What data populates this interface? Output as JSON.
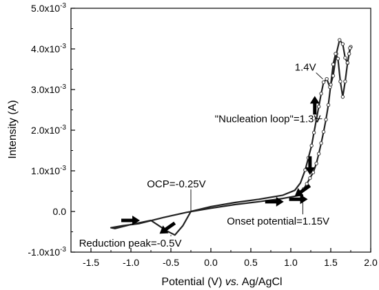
{
  "chart_data": {
    "type": "line",
    "xlabel": "Potential (V) vs. Ag/AgCl",
    "xlabel_parts": {
      "before": "Potential (V) ",
      "italic": "vs.",
      "after": " Ag/AgCl"
    },
    "ylabel": "Intensity (A)",
    "xlim": [
      -1.75,
      2.0
    ],
    "ylim": [
      -0.001,
      0.005
    ],
    "x_ticks": [
      -1.5,
      -1.0,
      -0.5,
      0.0,
      0.5,
      1.0,
      1.5,
      2.0
    ],
    "x_tick_labels": [
      "-1.5",
      "-1.0",
      "-0.5",
      "0.0",
      "0.5",
      "1.0",
      "1.5",
      "2.0"
    ],
    "y_ticks": [
      -0.001,
      0.0,
      0.001,
      0.002,
      0.003,
      0.004,
      0.005
    ],
    "y_tick_labels": [
      {
        "mantissa": "-1.0x10",
        "exp": "-3"
      },
      {
        "mantissa": "0.0",
        "exp": ""
      },
      {
        "mantissa": "1.0x10",
        "exp": "-3"
      },
      {
        "mantissa": "2.0x10",
        "exp": "-3"
      },
      {
        "mantissa": "3.0x10",
        "exp": "-3"
      },
      {
        "mantissa": "4.0x10",
        "exp": "-3"
      },
      {
        "mantissa": "5.0x10",
        "exp": "-3"
      }
    ],
    "grid": false,
    "series": [
      {
        "values_note": "",
        "x": [
          -0.25,
          0.0,
          0.3,
          0.6,
          0.9,
          1.05,
          1.12,
          1.18,
          1.22,
          1.26,
          1.29,
          1.32,
          1.35,
          1.38,
          1.41,
          1.45,
          1.49,
          1.53,
          1.57,
          1.61,
          1.65,
          1.68,
          1.71,
          1.73,
          1.75,
          1.74,
          1.71,
          1.68,
          1.65,
          1.62,
          1.59,
          1.56,
          1.53,
          1.5,
          1.47,
          1.44,
          1.41,
          1.38,
          1.35,
          1.32,
          1.28,
          1.24,
          1.2,
          1.16,
          1.12,
          0.9,
          0.6,
          0.3,
          0.0,
          -0.3,
          -0.6,
          -0.9,
          -1.1,
          -1.25,
          -1.2,
          -1.0,
          -0.75,
          -0.55,
          -0.45,
          -0.35,
          -0.25
        ],
        "y": [
          0.0,
          0.00012,
          0.00022,
          0.0003,
          0.0004,
          0.00052,
          0.0007,
          0.00102,
          0.00132,
          0.00162,
          0.00194,
          0.00226,
          0.00258,
          0.0029,
          0.00318,
          0.00326,
          0.00306,
          0.00334,
          0.00388,
          0.00422,
          0.00412,
          0.00378,
          0.00365,
          0.00388,
          0.00405,
          0.00402,
          0.00366,
          0.0032,
          0.00282,
          0.0032,
          0.00376,
          0.00388,
          0.00362,
          0.00312,
          0.00262,
          0.00226,
          0.00196,
          0.00168,
          0.00142,
          0.00118,
          0.00096,
          0.00082,
          0.00068,
          0.00055,
          0.0004,
          0.00032,
          0.00024,
          0.00017,
          8e-05,
          -2e-05,
          -0.00015,
          -0.0003,
          -0.00035,
          -0.0004,
          -0.00042,
          -0.00032,
          -0.00022,
          -0.00048,
          -0.00058,
          -0.00035,
          0.0
        ]
      }
    ],
    "arrows": [
      {
        "x": -1.0,
        "y": -0.00022,
        "dir": "right"
      },
      {
        "x": -0.55,
        "y": -0.00042,
        "dir": "down-left"
      },
      {
        "x": 0.8,
        "y": 0.00024,
        "dir": "right"
      },
      {
        "x": 1.1,
        "y": 0.0003,
        "dir": "right"
      },
      {
        "x": 1.14,
        "y": 0.0005,
        "dir": "down-left"
      },
      {
        "x": 1.24,
        "y": 0.00112,
        "dir": "down"
      },
      {
        "x": 1.3,
        "y": 0.00262,
        "dir": "up"
      }
    ],
    "annotations": [
      {
        "text": "1.4V",
        "x": 1.4,
        "y": 0.00326,
        "label_x": 1.05,
        "label_y": 0.00355
      },
      {
        "text": "\"Nucleation loop\"=1.3V",
        "x": 1.31,
        "y": 0.00228,
        "label_x": 0.05,
        "label_y": 0.00228
      },
      {
        "text": "OCP=-0.25V",
        "x": -0.25,
        "y": 0.0,
        "label_x": -0.8,
        "label_y": 0.00068
      },
      {
        "text": "Onset potential=1.15V",
        "x": 1.15,
        "y": 0.00042,
        "label_x": 0.2,
        "label_y": -0.00024
      },
      {
        "text": "Reduction peak=-0.5V",
        "x": -0.5,
        "y": -0.00058,
        "label_x": -1.65,
        "label_y": -0.00078
      }
    ]
  }
}
